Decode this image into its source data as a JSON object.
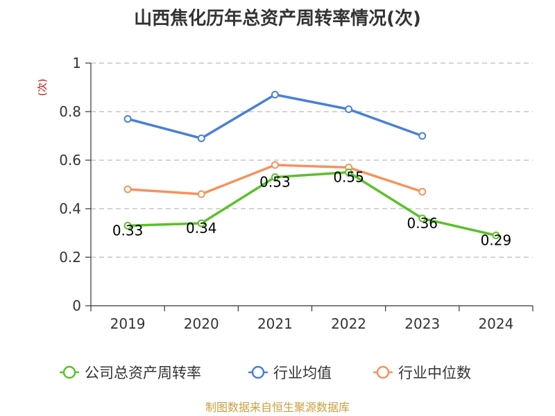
{
  "chart_data": {
    "type": "line",
    "title": "山西焦化历年总资产周转率情况(次)",
    "ylabel": "(次)",
    "categories": [
      "2019",
      "2020",
      "2021",
      "2022",
      "2023",
      "2024"
    ],
    "ylim": [
      0,
      1
    ],
    "yticks": [
      "0",
      "0.2",
      "0.4",
      "0.6",
      "0.8",
      "1"
    ],
    "grid": true,
    "legend_position": "bottom",
    "series": [
      {
        "name": "公司总资产周转率",
        "color": "#5ac12a",
        "values": [
          0.33,
          0.34,
          0.53,
          0.55,
          0.36,
          0.29
        ],
        "labels": [
          "0.33",
          "0.34",
          "0.53",
          "0.55",
          "0.36",
          "0.29"
        ]
      },
      {
        "name": "行业均值",
        "color": "#4a7fd8",
        "values": [
          0.77,
          0.69,
          0.87,
          0.81,
          0.7,
          null
        ]
      },
      {
        "name": "行业中位数",
        "color": "#f5935a",
        "values": [
          0.48,
          0.46,
          0.58,
          0.57,
          0.47,
          null
        ]
      }
    ]
  },
  "source": "制图数据来自恒生聚源数据库"
}
